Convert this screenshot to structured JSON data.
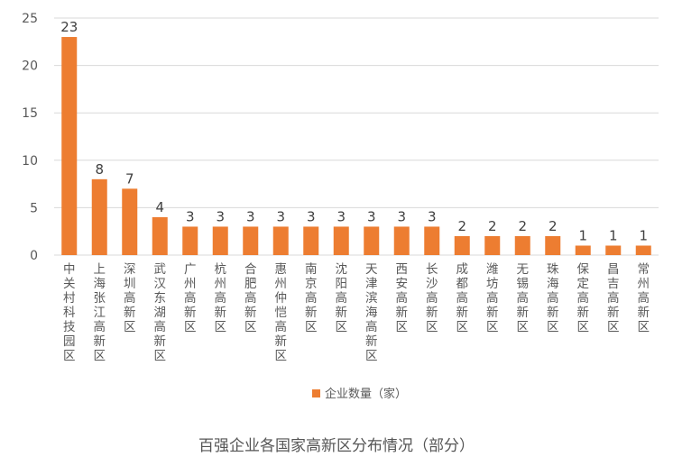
{
  "chart_data": {
    "type": "bar",
    "categories": [
      "中关村科技园区",
      "上海张江高新区",
      "深圳高新区",
      "武汉东湖高新区",
      "广州高新区",
      "杭州高新区",
      "合肥高新区",
      "惠州仲恺高新区",
      "南京高新区",
      "沈阳高新区",
      "天津滨海高新区",
      "西安高新区",
      "长沙高新区",
      "成都高新区",
      "潍坊高新区",
      "无锡高新区",
      "珠海高新区",
      "保定高新区",
      "昌吉高新区",
      "常州高新区"
    ],
    "series": [
      {
        "name": "企业数量（家）",
        "values": [
          23,
          8,
          7,
          4,
          3,
          3,
          3,
          3,
          3,
          3,
          3,
          3,
          3,
          2,
          2,
          2,
          2,
          1,
          1,
          1
        ],
        "color": "#ED7D31"
      }
    ],
    "ylim": [
      0,
      25
    ],
    "yticks": [
      "0",
      "5",
      "10",
      "15",
      "20",
      "25"
    ],
    "grid": true,
    "legend": "bottom"
  },
  "caption": "百强企业各国家高新区分布情况（部分）"
}
